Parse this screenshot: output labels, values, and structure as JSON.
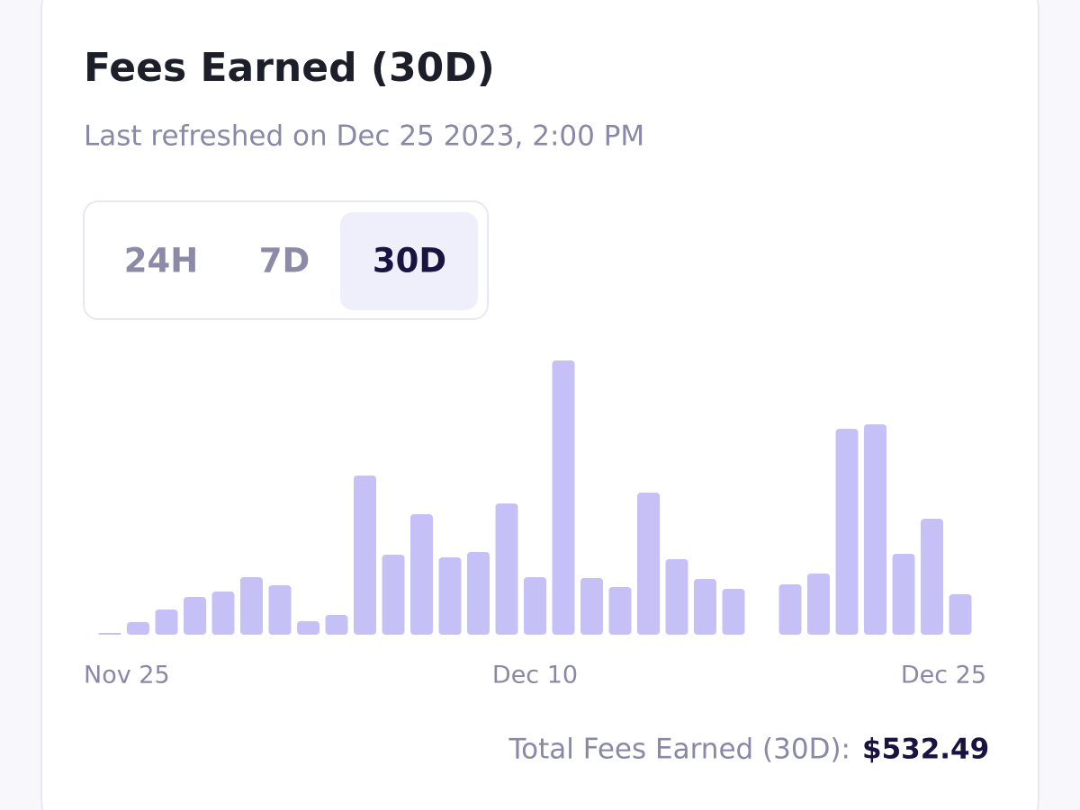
{
  "header": {
    "title": "Fees Earned (30D)",
    "subtitle": "Last refreshed on Dec 25 2023, 2:00 PM"
  },
  "tabs": {
    "items": [
      "24H",
      "7D",
      "30D"
    ],
    "selected": 2
  },
  "chart_data": {
    "type": "bar",
    "color": "#c5c0f5",
    "categories": [
      "Nov 25",
      null,
      null,
      null,
      null,
      null,
      null,
      null,
      null,
      null,
      null,
      null,
      null,
      null,
      null,
      "Dec 10",
      null,
      null,
      null,
      null,
      null,
      null,
      null,
      null,
      null,
      null,
      null,
      null,
      null,
      null,
      "Dec 25"
    ],
    "values": [
      0.4,
      2.8,
      5.6,
      8.4,
      9.6,
      12.8,
      11,
      3,
      4.4,
      35.4,
      17.8,
      26.8,
      17.2,
      18.4,
      29.2,
      12.8,
      61,
      12.6,
      10.6,
      31.6,
      16.8,
      12.4,
      10.2,
      null,
      11.2,
      13.6,
      45.8,
      46.8,
      18,
      25.8,
      9
    ],
    "ylim": [
      0,
      61
    ]
  },
  "footer": {
    "total_label": "Total Fees Earned (30D):",
    "total_value": "$532.49"
  }
}
